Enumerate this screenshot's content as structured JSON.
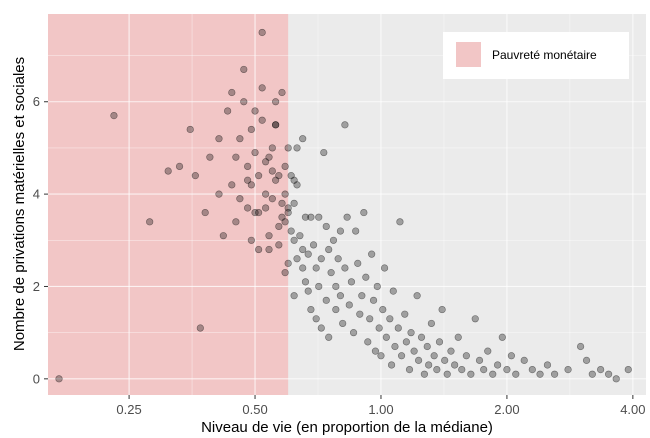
{
  "chart_data": {
    "type": "scatter",
    "xlabel": "Niveau de vie (en proportion de la médiane)",
    "ylabel": "Nombre de privations matérielles et sociales",
    "x_scale": "log2",
    "xlim": [
      0.16,
      4.3
    ],
    "ylim": [
      -0.35,
      7.9
    ],
    "x_ticks": [
      {
        "value": 0.25,
        "label": "0.25"
      },
      {
        "value": 0.5,
        "label": "0.50"
      },
      {
        "value": 1,
        "label": "1.00"
      },
      {
        "value": 2,
        "label": "2.00"
      },
      {
        "value": 4,
        "label": "4.00"
      }
    ],
    "y_ticks": [
      {
        "value": 0,
        "label": "0"
      },
      {
        "value": 2,
        "label": "2"
      },
      {
        "value": 4,
        "label": "4"
      },
      {
        "value": 6,
        "label": "6"
      }
    ],
    "shaded_region": {
      "label": "Pauvreté monétaire",
      "x_max": 0.6,
      "color": "#f2c6c6"
    },
    "legend": {
      "position": "top-right",
      "entries": [
        "Pauvreté monétaire"
      ]
    },
    "grid": true,
    "point_color": "#000000",
    "point_opacity": 0.32,
    "points": [
      [
        0.17,
        0.0
      ],
      [
        0.23,
        5.7
      ],
      [
        0.28,
        3.4
      ],
      [
        0.31,
        4.5
      ],
      [
        0.33,
        4.6
      ],
      [
        0.35,
        5.4
      ],
      [
        0.36,
        4.4
      ],
      [
        0.37,
        1.1
      ],
      [
        0.38,
        3.6
      ],
      [
        0.39,
        4.8
      ],
      [
        0.41,
        5.2
      ],
      [
        0.41,
        4.0
      ],
      [
        0.42,
        3.1
      ],
      [
        0.43,
        5.8
      ],
      [
        0.44,
        6.2
      ],
      [
        0.44,
        4.2
      ],
      [
        0.45,
        3.4
      ],
      [
        0.45,
        4.8
      ],
      [
        0.46,
        5.2
      ],
      [
        0.46,
        3.9
      ],
      [
        0.47,
        6.0
      ],
      [
        0.47,
        6.7
      ],
      [
        0.48,
        4.3
      ],
      [
        0.48,
        3.7
      ],
      [
        0.48,
        4.6
      ],
      [
        0.49,
        5.4
      ],
      [
        0.49,
        3.0
      ],
      [
        0.49,
        4.2
      ],
      [
        0.5,
        4.9
      ],
      [
        0.5,
        5.8
      ],
      [
        0.5,
        3.6
      ],
      [
        0.51,
        2.8
      ],
      [
        0.51,
        4.4
      ],
      [
        0.51,
        3.6
      ],
      [
        0.52,
        5.6
      ],
      [
        0.52,
        6.3
      ],
      [
        0.52,
        7.5
      ],
      [
        0.53,
        4.0
      ],
      [
        0.53,
        3.7
      ],
      [
        0.53,
        4.7
      ],
      [
        0.54,
        4.8
      ],
      [
        0.54,
        3.1
      ],
      [
        0.54,
        2.8
      ],
      [
        0.55,
        5.0
      ],
      [
        0.55,
        4.5
      ],
      [
        0.55,
        3.9
      ],
      [
        0.56,
        6.0
      ],
      [
        0.56,
        5.5
      ],
      [
        0.56,
        5.5
      ],
      [
        0.56,
        4.3
      ],
      [
        0.57,
        4.4
      ],
      [
        0.57,
        3.3
      ],
      [
        0.57,
        2.9
      ],
      [
        0.58,
        6.2
      ],
      [
        0.58,
        3.5
      ],
      [
        0.58,
        3.8
      ],
      [
        0.59,
        4.6
      ],
      [
        0.59,
        2.3
      ],
      [
        0.59,
        3.4
      ],
      [
        0.59,
        4.0
      ],
      [
        0.6,
        5.0
      ],
      [
        0.6,
        3.6
      ],
      [
        0.6,
        2.5
      ],
      [
        0.6,
        3.7
      ],
      [
        0.61,
        4.4
      ],
      [
        0.61,
        3.2
      ],
      [
        0.62,
        4.3
      ],
      [
        0.62,
        3.8
      ],
      [
        0.62,
        3.0
      ],
      [
        0.62,
        1.8
      ],
      [
        0.63,
        5.0
      ],
      [
        0.63,
        4.2
      ],
      [
        0.63,
        2.6
      ],
      [
        0.64,
        3.1
      ],
      [
        0.65,
        2.8
      ],
      [
        0.65,
        5.2
      ],
      [
        0.65,
        2.4
      ],
      [
        0.66,
        3.5
      ],
      [
        0.66,
        2.1
      ],
      [
        0.67,
        1.9
      ],
      [
        0.67,
        2.7
      ],
      [
        0.68,
        3.5
      ],
      [
        0.68,
        1.5
      ],
      [
        0.69,
        2.9
      ],
      [
        0.7,
        2.4
      ],
      [
        0.7,
        1.3
      ],
      [
        0.71,
        3.5
      ],
      [
        0.71,
        2.0
      ],
      [
        0.72,
        2.6
      ],
      [
        0.72,
        1.1
      ],
      [
        0.73,
        4.9
      ],
      [
        0.74,
        3.3
      ],
      [
        0.74,
        1.7
      ],
      [
        0.75,
        2.8
      ],
      [
        0.75,
        0.9
      ],
      [
        0.76,
        2.3
      ],
      [
        0.77,
        3.0
      ],
      [
        0.78,
        1.5
      ],
      [
        0.78,
        2.0
      ],
      [
        0.79,
        2.6
      ],
      [
        0.8,
        3.2
      ],
      [
        0.8,
        1.8
      ],
      [
        0.81,
        1.2
      ],
      [
        0.82,
        5.5
      ],
      [
        0.82,
        2.4
      ],
      [
        0.83,
        3.5
      ],
      [
        0.84,
        1.6
      ],
      [
        0.85,
        2.1
      ],
      [
        0.86,
        1.0
      ],
      [
        0.87,
        3.2
      ],
      [
        0.88,
        2.5
      ],
      [
        0.89,
        1.4
      ],
      [
        0.9,
        1.8
      ],
      [
        0.91,
        3.6
      ],
      [
        0.92,
        2.2
      ],
      [
        0.93,
        0.8
      ],
      [
        0.94,
        1.3
      ],
      [
        0.95,
        2.7
      ],
      [
        0.96,
        1.7
      ],
      [
        0.97,
        0.6
      ],
      [
        0.98,
        2.0
      ],
      [
        0.99,
        1.1
      ],
      [
        1.0,
        0.5
      ],
      [
        1.01,
        1.5
      ],
      [
        1.02,
        2.4
      ],
      [
        1.03,
        0.9
      ],
      [
        1.05,
        1.3
      ],
      [
        1.06,
        0.3
      ],
      [
        1.07,
        1.9
      ],
      [
        1.08,
        0.7
      ],
      [
        1.1,
        1.1
      ],
      [
        1.11,
        3.4
      ],
      [
        1.12,
        0.5
      ],
      [
        1.14,
        1.4
      ],
      [
        1.15,
        0.8
      ],
      [
        1.17,
        0.2
      ],
      [
        1.18,
        1.0
      ],
      [
        1.2,
        0.6
      ],
      [
        1.22,
        1.8
      ],
      [
        1.23,
        0.4
      ],
      [
        1.25,
        0.9
      ],
      [
        1.27,
        0.1
      ],
      [
        1.29,
        0.7
      ],
      [
        1.3,
        0.3
      ],
      [
        1.32,
        1.2
      ],
      [
        1.34,
        0.5
      ],
      [
        1.36,
        0.2
      ],
      [
        1.38,
        0.8
      ],
      [
        1.4,
        1.5
      ],
      [
        1.42,
        0.4
      ],
      [
        1.44,
        0.1
      ],
      [
        1.47,
        0.6
      ],
      [
        1.5,
        0.3
      ],
      [
        1.53,
        0.9
      ],
      [
        1.56,
        0.2
      ],
      [
        1.6,
        0.5
      ],
      [
        1.64,
        0.1
      ],
      [
        1.68,
        1.3
      ],
      [
        1.72,
        0.4
      ],
      [
        1.76,
        0.2
      ],
      [
        1.8,
        0.6
      ],
      [
        1.85,
        0.1
      ],
      [
        1.9,
        0.3
      ],
      [
        1.95,
        0.9
      ],
      [
        2.0,
        0.2
      ],
      [
        2.05,
        0.5
      ],
      [
        2.1,
        0.1
      ],
      [
        2.2,
        0.4
      ],
      [
        2.3,
        0.2
      ],
      [
        2.4,
        0.1
      ],
      [
        2.5,
        0.3
      ],
      [
        2.6,
        0.1
      ],
      [
        2.8,
        0.2
      ],
      [
        3.0,
        0.7
      ],
      [
        3.1,
        0.4
      ],
      [
        3.2,
        0.1
      ],
      [
        3.35,
        0.2
      ],
      [
        3.5,
        0.1
      ],
      [
        3.65,
        0.0
      ],
      [
        3.9,
        0.2
      ]
    ]
  }
}
